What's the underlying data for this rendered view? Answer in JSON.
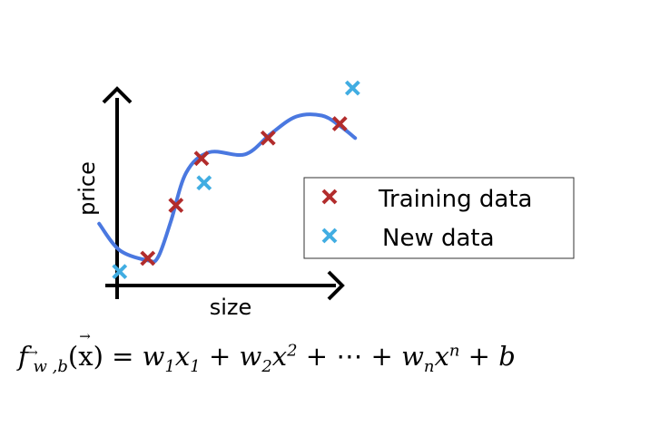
{
  "chart_data": {
    "type": "scatter",
    "xlabel": "size",
    "ylabel": "price",
    "xlim": [
      0,
      10
    ],
    "ylim": [
      0,
      10
    ],
    "grid": false,
    "legend_placement": "right",
    "colors": {
      "training": "#b22c2c",
      "new": "#41ade2",
      "curve": "#4a78e0",
      "axes": "#000000"
    },
    "series": [
      {
        "name": "Training data",
        "marker": "x",
        "points": [
          [
            1.8,
            1.2
          ],
          [
            2.9,
            3.8
          ],
          [
            3.9,
            6.1
          ],
          [
            6.5,
            7.1
          ],
          [
            9.3,
            7.8
          ]
        ]
      },
      {
        "name": "New data",
        "marker": "x",
        "points": [
          [
            0.7,
            0.55
          ],
          [
            4.0,
            4.9
          ],
          [
            9.8,
            9.55
          ]
        ]
      }
    ],
    "fit_curve": {
      "points": [
        [
          -0.1,
          2.9
        ],
        [
          0.7,
          1.6
        ],
        [
          1.8,
          1.1
        ],
        [
          2.2,
          1.25
        ],
        [
          2.7,
          3.0
        ],
        [
          3.3,
          5.4
        ],
        [
          4.2,
          6.4
        ],
        [
          5.6,
          6.3
        ],
        [
          6.6,
          7.3
        ],
        [
          7.6,
          8.15
        ],
        [
          8.6,
          8.2
        ],
        [
          9.3,
          7.7
        ],
        [
          9.9,
          7.1
        ]
      ]
    }
  },
  "formula": {
    "f": "f",
    "sub_w": "w",
    "sub_comma_b": ",b",
    "arg_x": "x",
    "equals": " = ",
    "w1": "w",
    "w1_sub": "1",
    "x1": "x",
    "x1_sub": "1",
    "plus1": " + ",
    "w2": "w",
    "w2_sub": "2",
    "x2": "x",
    "x2_sup": "2",
    "plus2": " + ",
    "dots": "⋯",
    "plus3": " + ",
    "wn": "w",
    "wn_sub": "n",
    "xn": "x",
    "xn_sup": "n",
    "plus4": " + ",
    "b": "b"
  }
}
